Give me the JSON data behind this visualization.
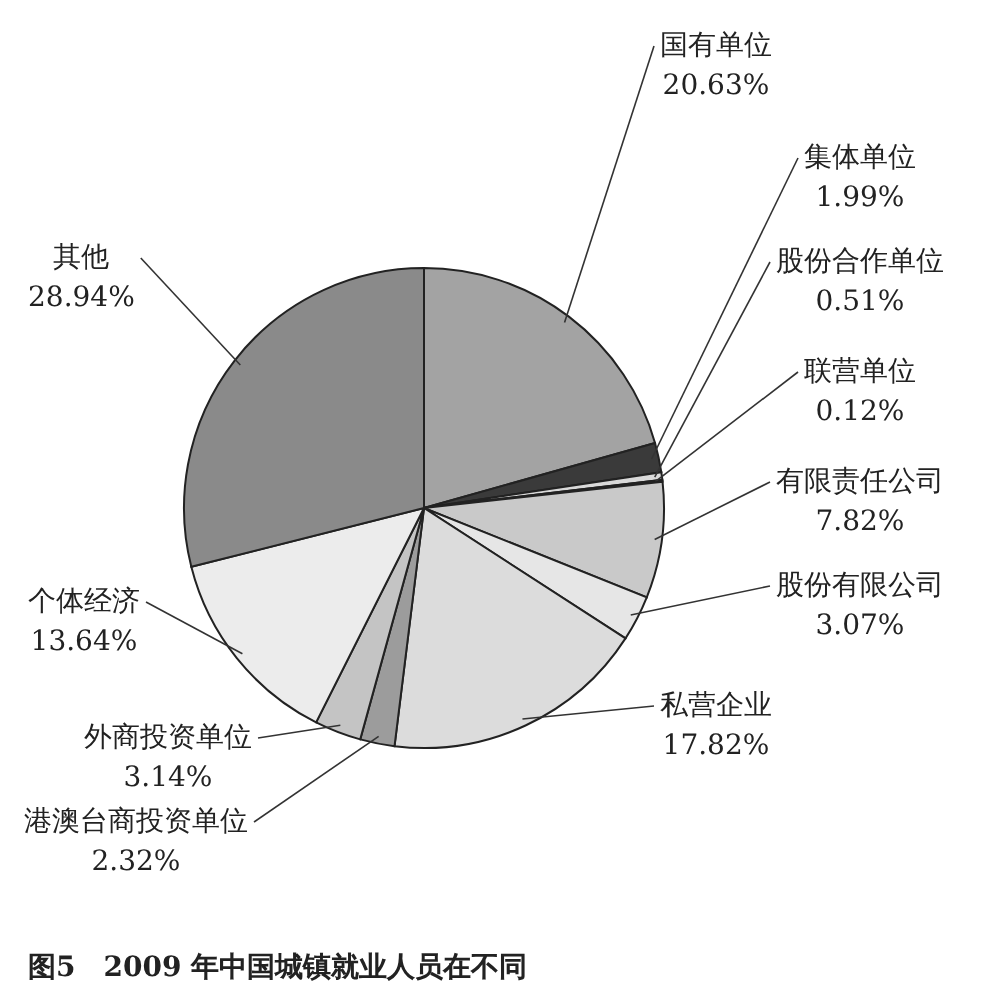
{
  "chart_data": {
    "type": "pie",
    "title": "图5　2009 年中国城镇就业人员在不同",
    "categories": [
      "国有单位",
      "集体单位",
      "股份合作单位",
      "联营单位",
      "有限责任公司",
      "股份有限公司",
      "私营企业",
      "港澳台商投资单位",
      "外商投资单位",
      "个体经济",
      "其他"
    ],
    "values": [
      20.63,
      1.99,
      0.51,
      0.12,
      7.82,
      3.07,
      17.82,
      2.32,
      3.14,
      13.64,
      28.94
    ],
    "colors": [
      "#a3a3a3",
      "#3a3a3a",
      "#d9d9d9",
      "#ffffff",
      "#c9c9c9",
      "#e6e6e6",
      "#dcdcdc",
      "#9c9c9c",
      "#c4c4c4",
      "#ececec",
      "#8a8a8a"
    ],
    "value_labels": [
      "20.63%",
      "1.99%",
      "0.51%",
      "0.12%",
      "7.82%",
      "3.07%",
      "17.82%",
      "2.32%",
      "3.14%",
      "13.64%",
      "28.94%"
    ]
  }
}
